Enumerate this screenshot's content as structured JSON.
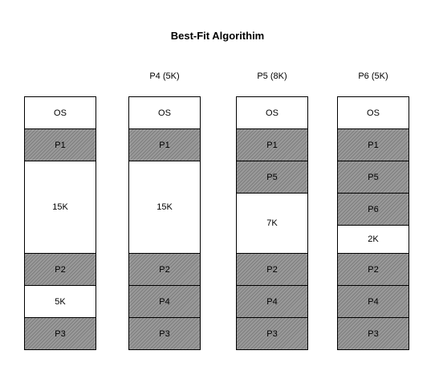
{
  "title": "Best-Fit Algorithim",
  "colors": {
    "allocated_fill": "#9a9a9a",
    "free_fill": "#ffffff",
    "border": "#000000"
  },
  "columns": [
    {
      "header": "",
      "blocks": [
        {
          "label": "OS",
          "size": 40,
          "kind": "free"
        },
        {
          "label": "P1",
          "size": 40,
          "kind": "allocated"
        },
        {
          "label": "15K",
          "size": 115,
          "kind": "free"
        },
        {
          "label": "P2",
          "size": 40,
          "kind": "allocated"
        },
        {
          "label": "5K",
          "size": 40,
          "kind": "free"
        },
        {
          "label": "P3",
          "size": 40,
          "kind": "allocated"
        }
      ]
    },
    {
      "header": "P4 (5K)",
      "blocks": [
        {
          "label": "OS",
          "size": 40,
          "kind": "free"
        },
        {
          "label": "P1",
          "size": 40,
          "kind": "allocated"
        },
        {
          "label": "15K",
          "size": 115,
          "kind": "free"
        },
        {
          "label": "P2",
          "size": 40,
          "kind": "allocated"
        },
        {
          "label": "P4",
          "size": 40,
          "kind": "allocated"
        },
        {
          "label": "P3",
          "size": 40,
          "kind": "allocated"
        }
      ]
    },
    {
      "header": "P5 (8K)",
      "blocks": [
        {
          "label": "OS",
          "size": 40,
          "kind": "free"
        },
        {
          "label": "P1",
          "size": 40,
          "kind": "allocated"
        },
        {
          "label": "P5",
          "size": 40,
          "kind": "allocated"
        },
        {
          "label": "7K",
          "size": 75,
          "kind": "free"
        },
        {
          "label": "P2",
          "size": 40,
          "kind": "allocated"
        },
        {
          "label": "P4",
          "size": 40,
          "kind": "allocated"
        },
        {
          "label": "P3",
          "size": 40,
          "kind": "allocated"
        }
      ]
    },
    {
      "header": "P6 (5K)",
      "blocks": [
        {
          "label": "OS",
          "size": 40,
          "kind": "free"
        },
        {
          "label": "P1",
          "size": 40,
          "kind": "allocated"
        },
        {
          "label": "P5",
          "size": 40,
          "kind": "allocated"
        },
        {
          "label": "P6",
          "size": 40,
          "kind": "allocated"
        },
        {
          "label": "2K",
          "size": 35,
          "kind": "free"
        },
        {
          "label": "P2",
          "size": 40,
          "kind": "allocated"
        },
        {
          "label": "P4",
          "size": 40,
          "kind": "allocated"
        },
        {
          "label": "P3",
          "size": 40,
          "kind": "allocated"
        }
      ]
    }
  ]
}
